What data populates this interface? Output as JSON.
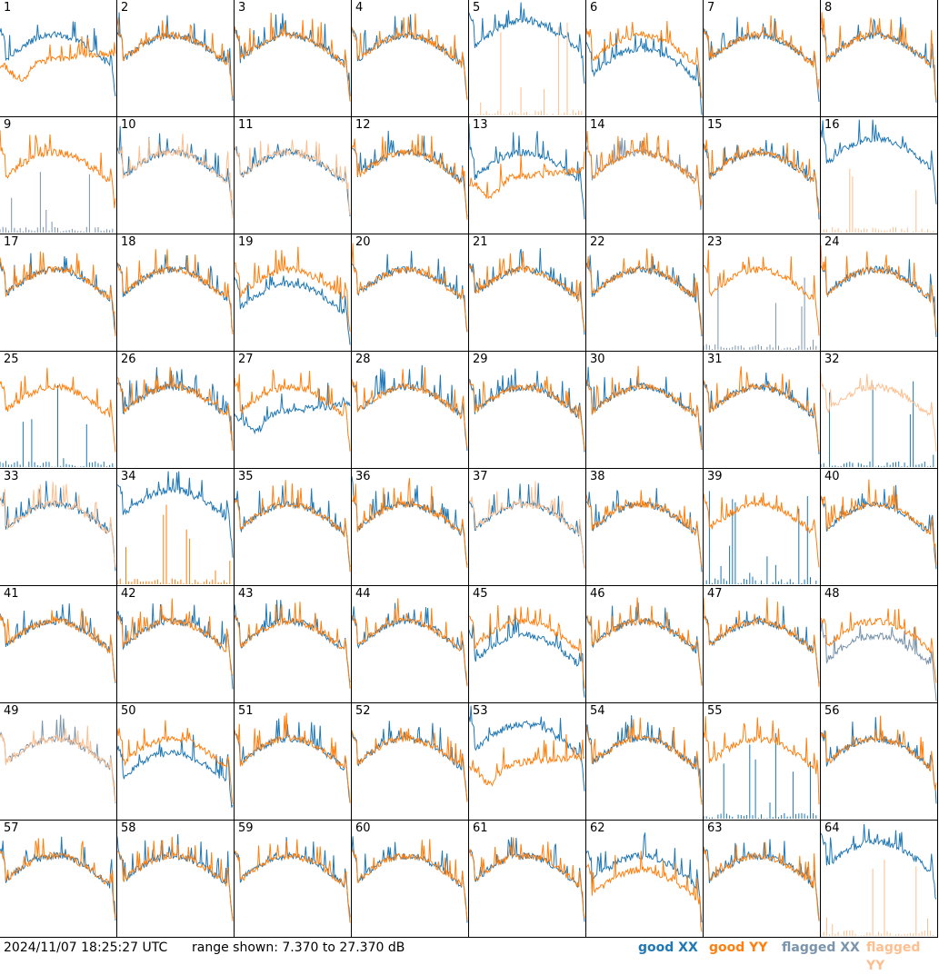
{
  "chart_data": {
    "type": "line",
    "timestamp": "2024/11/07 18:25:27 UTC",
    "range_text": "range shown: 7.370 to 27.370 dB",
    "ylim": [
      7.37,
      27.37
    ],
    "legend": [
      {
        "label": "good XX",
        "color": "#1f77b4"
      },
      {
        "label": "good YY",
        "color": "#ff7f0e"
      },
      {
        "label": "flagged XX",
        "color": "#7a94ac"
      },
      {
        "label": "flagged YY",
        "color": "#fdbf8f"
      }
    ],
    "panel_labels": [
      "1",
      "2",
      "3",
      "4",
      "5",
      "6",
      "7",
      "8",
      "9",
      "10",
      "11",
      "12",
      "13",
      "14",
      "15",
      "16",
      "17",
      "18",
      "19",
      "20",
      "21",
      "22",
      "23",
      "24",
      "25",
      "26",
      "27",
      "28",
      "29",
      "30",
      "31",
      "32",
      "33",
      "34",
      "35",
      "36",
      "37",
      "38",
      "39",
      "40",
      "41",
      "42",
      "43",
      "44",
      "45",
      "46",
      "47",
      "48",
      "49",
      "50",
      "51",
      "52",
      "53",
      "54",
      "55",
      "56",
      "57",
      "58",
      "59",
      "60",
      "61",
      "62",
      "63",
      "64"
    ],
    "panels": [
      {
        "xx": "g",
        "yy": "g",
        "xx_shape": "normal",
        "yy_shape": "sag"
      },
      {
        "xx": "g",
        "yy": "g",
        "xx_shape": "normal",
        "yy_shape": "normal"
      },
      {
        "xx": "g",
        "yy": "g",
        "xx_shape": "normal",
        "yy_shape": "normal"
      },
      {
        "xx": "g",
        "yy": "g",
        "xx_shape": "normal",
        "yy_shape": "normal"
      },
      {
        "xx": "g",
        "yy": "f",
        "xx_shape": "high",
        "yy_shape": "spikes"
      },
      {
        "xx": "g",
        "yy": "g",
        "xx_shape": "low",
        "yy_shape": "normal"
      },
      {
        "xx": "g",
        "yy": "g",
        "xx_shape": "normal",
        "yy_shape": "normal"
      },
      {
        "xx": "g",
        "yy": "g",
        "xx_shape": "normal",
        "yy_shape": "normal"
      },
      {
        "xx": "f",
        "yy": "g",
        "xx_shape": "spikes",
        "yy_shape": "normal"
      },
      {
        "xx": "g",
        "yy": "f",
        "xx_shape": "normal",
        "yy_shape": "normal"
      },
      {
        "xx": "g",
        "yy": "f",
        "xx_shape": "normal",
        "yy_shape": "normal"
      },
      {
        "xx": "g",
        "yy": "g",
        "xx_shape": "normal",
        "yy_shape": "normal"
      },
      {
        "xx": "g",
        "yy": "g",
        "xx_shape": "normal",
        "yy_shape": "sag"
      },
      {
        "xx": "f",
        "yy": "g",
        "xx_shape": "normal",
        "yy_shape": "normal"
      },
      {
        "xx": "g",
        "yy": "g",
        "xx_shape": "normal",
        "yy_shape": "normal"
      },
      {
        "xx": "g",
        "yy": "f",
        "xx_shape": "high",
        "yy_shape": "spikes"
      },
      {
        "xx": "g",
        "yy": "g",
        "xx_shape": "normal",
        "yy_shape": "normal"
      },
      {
        "xx": "g",
        "yy": "g",
        "xx_shape": "normal",
        "yy_shape": "normal"
      },
      {
        "xx": "g",
        "yy": "g",
        "xx_shape": "low",
        "yy_shape": "normal"
      },
      {
        "xx": "g",
        "yy": "g",
        "xx_shape": "normal",
        "yy_shape": "normal"
      },
      {
        "xx": "g",
        "yy": "g",
        "xx_shape": "normal",
        "yy_shape": "normal"
      },
      {
        "xx": "g",
        "yy": "g",
        "xx_shape": "normal",
        "yy_shape": "normal"
      },
      {
        "xx": "f",
        "yy": "g",
        "xx_shape": "spikes",
        "yy_shape": "normal"
      },
      {
        "xx": "g",
        "yy": "g",
        "xx_shape": "normal",
        "yy_shape": "normal"
      },
      {
        "xx": "g",
        "yy": "g",
        "xx_shape": "spikes",
        "yy_shape": "normal"
      },
      {
        "xx": "g",
        "yy": "g",
        "xx_shape": "normal",
        "yy_shape": "normal"
      },
      {
        "xx": "g",
        "yy": "g",
        "xx_shape": "sag",
        "yy_shape": "normal"
      },
      {
        "xx": "g",
        "yy": "g",
        "xx_shape": "normal",
        "yy_shape": "normal"
      },
      {
        "xx": "g",
        "yy": "g",
        "xx_shape": "normal",
        "yy_shape": "normal"
      },
      {
        "xx": "g",
        "yy": "g",
        "xx_shape": "normal",
        "yy_shape": "normal"
      },
      {
        "xx": "g",
        "yy": "g",
        "xx_shape": "normal",
        "yy_shape": "normal"
      },
      {
        "xx": "g",
        "yy": "f",
        "xx_shape": "spikes",
        "yy_shape": "normal"
      },
      {
        "xx": "g",
        "yy": "f",
        "xx_shape": "normal",
        "yy_shape": "normal"
      },
      {
        "xx": "g",
        "yy": "g",
        "xx_shape": "high",
        "yy_shape": "spikes"
      },
      {
        "xx": "g",
        "yy": "g",
        "xx_shape": "normal",
        "yy_shape": "normal"
      },
      {
        "xx": "g",
        "yy": "g",
        "xx_shape": "normal",
        "yy_shape": "normal"
      },
      {
        "xx": "g",
        "yy": "f",
        "xx_shape": "normal",
        "yy_shape": "normal"
      },
      {
        "xx": "g",
        "yy": "g",
        "xx_shape": "normal",
        "yy_shape": "normal"
      },
      {
        "xx": "g",
        "yy": "g",
        "xx_shape": "spikes",
        "yy_shape": "normal"
      },
      {
        "xx": "g",
        "yy": "g",
        "xx_shape": "normal",
        "yy_shape": "normal"
      },
      {
        "xx": "g",
        "yy": "g",
        "xx_shape": "normal",
        "yy_shape": "normal"
      },
      {
        "xx": "g",
        "yy": "g",
        "xx_shape": "normal",
        "yy_shape": "normal"
      },
      {
        "xx": "g",
        "yy": "g",
        "xx_shape": "normal",
        "yy_shape": "normal"
      },
      {
        "xx": "g",
        "yy": "g",
        "xx_shape": "normal",
        "yy_shape": "normal"
      },
      {
        "xx": "g",
        "yy": "g",
        "xx_shape": "low",
        "yy_shape": "normal"
      },
      {
        "xx": "g",
        "yy": "g",
        "xx_shape": "normal",
        "yy_shape": "normal"
      },
      {
        "xx": "g",
        "yy": "g",
        "xx_shape": "normal",
        "yy_shape": "normal"
      },
      {
        "xx": "f",
        "yy": "g",
        "xx_shape": "low",
        "yy_shape": "normal"
      },
      {
        "xx": "f",
        "yy": "f",
        "xx_shape": "normal",
        "yy_shape": "normal"
      },
      {
        "xx": "g",
        "yy": "g",
        "xx_shape": "low",
        "yy_shape": "normal"
      },
      {
        "xx": "g",
        "yy": "g",
        "xx_shape": "normal",
        "yy_shape": "normal"
      },
      {
        "xx": "g",
        "yy": "g",
        "xx_shape": "normal",
        "yy_shape": "normal"
      },
      {
        "xx": "g",
        "yy": "g",
        "xx_shape": "high",
        "yy_shape": "sag"
      },
      {
        "xx": "g",
        "yy": "g",
        "xx_shape": "normal",
        "yy_shape": "normal"
      },
      {
        "xx": "g",
        "yy": "g",
        "xx_shape": "spikes",
        "yy_shape": "normal"
      },
      {
        "xx": "g",
        "yy": "g",
        "xx_shape": "normal",
        "yy_shape": "normal"
      },
      {
        "xx": "g",
        "yy": "g",
        "xx_shape": "normal",
        "yy_shape": "normal"
      },
      {
        "xx": "g",
        "yy": "g",
        "xx_shape": "normal",
        "yy_shape": "normal"
      },
      {
        "xx": "g",
        "yy": "g",
        "xx_shape": "normal",
        "yy_shape": "normal"
      },
      {
        "xx": "g",
        "yy": "g",
        "xx_shape": "normal",
        "yy_shape": "normal"
      },
      {
        "xx": "g",
        "yy": "g",
        "xx_shape": "normal",
        "yy_shape": "normal"
      },
      {
        "xx": "g",
        "yy": "g",
        "xx_shape": "normal",
        "yy_shape": "low"
      },
      {
        "xx": "g",
        "yy": "g",
        "xx_shape": "normal",
        "yy_shape": "normal"
      },
      {
        "xx": "g",
        "yy": "f",
        "xx_shape": "high",
        "yy_shape": "spikes"
      }
    ]
  }
}
